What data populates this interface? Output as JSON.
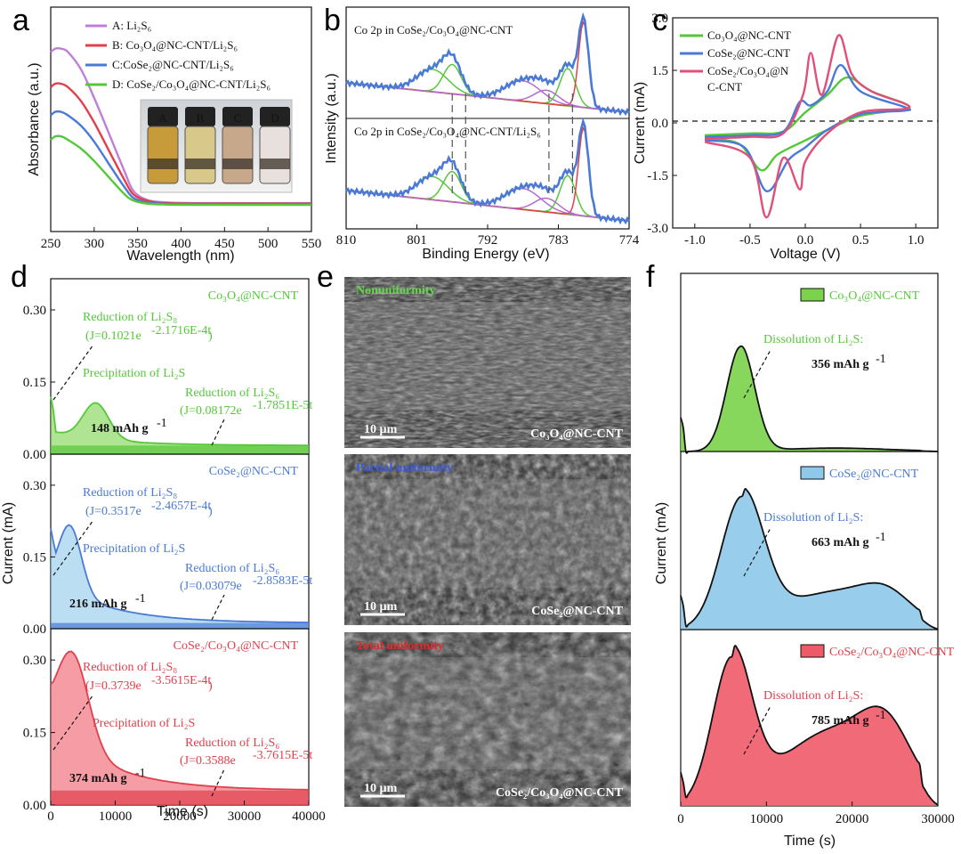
{
  "panel_labels": [
    "a",
    "b",
    "c",
    "d",
    "e",
    "f"
  ],
  "colors": {
    "purple": "#c07fd6",
    "red": "#e0404c",
    "blue": "#4a7ad6",
    "green": "#55c83a",
    "orange": "#f0a04a",
    "pink": "#e0507a",
    "violet": "#b46ad0",
    "green_fill": "#7ad34a",
    "blue_fill": "#8ec8ea",
    "red_fill": "#ee5a68",
    "sem_green": "#62d84a",
    "sem_blue": "#3b5bd6",
    "sem_red": "#e02a2a"
  },
  "chart_data": [
    {
      "id": "a",
      "type": "line",
      "xlabel": "Wavelength (nm)",
      "ylabel": "Absorbance (a.u.)",
      "xlim": [
        250,
        550
      ],
      "xticks": [
        "250",
        "300",
        "350",
        "400",
        "450",
        "500",
        "550"
      ],
      "legend_position": "top-right",
      "legend": [
        {
          "label": "A: Li₂S₆",
          "color": "purple"
        },
        {
          "label": "B: Co₃O₄@NC-CNT/Li₂S₆",
          "color": "red"
        },
        {
          "label": "C:CoSe₂@NC-CNT/Li₂S₆",
          "color": "blue"
        },
        {
          "label": "D: CoSe₂/Co₃O₄@NC-CNT/Li₂S₆",
          "color": "green"
        }
      ],
      "series": [
        {
          "color": "purple",
          "x": [
            250,
            255,
            262,
            270,
            285,
            300,
            320,
            335,
            345,
            360,
            380,
            420,
            550
          ],
          "y": [
            0.88,
            0.9,
            0.9,
            0.88,
            0.78,
            0.62,
            0.38,
            0.2,
            0.09,
            0.04,
            0.025,
            0.02,
            0.02
          ]
        },
        {
          "color": "red",
          "x": [
            250,
            255,
            262,
            270,
            285,
            300,
            320,
            335,
            345,
            360,
            380,
            420,
            550
          ],
          "y": [
            0.68,
            0.7,
            0.7,
            0.68,
            0.6,
            0.48,
            0.29,
            0.15,
            0.07,
            0.035,
            0.02,
            0.018,
            0.018
          ]
        },
        {
          "color": "blue",
          "x": [
            250,
            255,
            262,
            270,
            285,
            300,
            320,
            335,
            345,
            360,
            380,
            420,
            550
          ],
          "y": [
            0.52,
            0.54,
            0.54,
            0.52,
            0.46,
            0.37,
            0.22,
            0.11,
            0.05,
            0.025,
            0.016,
            0.015,
            0.015
          ]
        },
        {
          "color": "green",
          "x": [
            250,
            255,
            262,
            270,
            285,
            300,
            320,
            335,
            345,
            360,
            380,
            420,
            550
          ],
          "y": [
            0.38,
            0.4,
            0.4,
            0.38,
            0.33,
            0.26,
            0.15,
            0.07,
            0.035,
            0.018,
            0.012,
            0.01,
            0.01
          ]
        }
      ],
      "inset_labels": [
        "A",
        "B",
        "C",
        "D"
      ]
    },
    {
      "id": "b",
      "type": "line",
      "xlabel": "Binding Energy (eV)",
      "ylabel": "Intensity (a.u.)",
      "xlim": [
        810,
        774
      ],
      "xticks": [
        "810",
        "801",
        "792",
        "783",
        "774"
      ],
      "subplots": [
        {
          "label": "Co 2p in CoSe₂/Co₃O₄@NC-CNT"
        },
        {
          "label": "Co 2p in CoSe₂/Co₃O₄@NC-CNT/Li₂S₆"
        }
      ]
    },
    {
      "id": "c",
      "type": "line",
      "xlabel": "Voltage (V)",
      "ylabel": "Current (mA)",
      "xlim": [
        -1.2,
        1.2
      ],
      "ylim": [
        -3.0,
        3.0
      ],
      "xticks": [
        "-1.0",
        "-0.5",
        "0.0",
        "0.5",
        "1.0"
      ],
      "yticks": [
        "-3.0",
        "-1.5",
        "0.0",
        "1.5",
        "3.0"
      ],
      "legend_position": "top-left",
      "legend": [
        {
          "label": "Co₃O₄@NC-CNT",
          "color": "green"
        },
        {
          "label": "CoSe₂@NC-CNT",
          "color": "blue"
        },
        {
          "label": "CoSe₂/Co₃O₄@N",
          "label2": "C-CNT",
          "color": "pink"
        }
      ]
    },
    {
      "id": "d",
      "type": "area",
      "xlabel": "Time (s)",
      "ylabel": "Current (mA)",
      "xlim": [
        0,
        40000
      ],
      "xticks": [
        "0",
        "10000",
        "20000",
        "30000",
        "40000"
      ],
      "ylim": [
        0,
        0.35
      ],
      "yticks": [
        "0.00",
        "0.15",
        "0.30"
      ],
      "subplots": [
        {
          "name": "Co₃O₄@NC-CNT",
          "color": "green",
          "capacity": "148 mAh g",
          "text_reduction_li2s8": "Reduction of Li₂S₈",
          "eq1": "(J=0.1021e",
          "eq1sup": "-2.1716E-4t",
          "text_precip": "Precipitation of Li₂S",
          "text_reduction_li2s6": "Reduction of Li₂S₆",
          "eq2": "(J=0.08172e",
          "eq2sup": "-1.7851E-5t"
        },
        {
          "name": "CoSe₂@NC-CNT",
          "color": "blue",
          "capacity": "216 mAh g",
          "text_reduction_li2s8": "Reduction of Li₂S₈",
          "eq1": "(J=0.3517e",
          "eq1sup": "-2.4657E-4t",
          "text_precip": "Precipitation of Li₂S",
          "text_reduction_li2s6": "Reduction of Li₂S₆",
          "eq2": "(J=0.03079e",
          "eq2sup": "-2.8583E-5t"
        },
        {
          "name": "CoSe₂/Co₃O₄@NC-CNT",
          "color": "red",
          "capacity": "374 mAh g",
          "text_reduction_li2s8": "Reduction of Li₂S₈",
          "eq1": "(J=0.3739e",
          "eq1sup": "-3.5615E-4t",
          "text_precip": "Precipitation of Li₂S",
          "text_reduction_li2s6": "Reduction of Li₂S₆",
          "eq2": "(J=0.3588e",
          "eq2sup": "-3.7615E-5t"
        }
      ]
    },
    {
      "id": "f",
      "type": "area",
      "xlabel": "Time (s)",
      "ylabel": "Current (mA)",
      "xlim": [
        0,
        30000
      ],
      "xticks": [
        "0",
        "10000",
        "20000",
        "30000"
      ],
      "subplots": [
        {
          "name": "Co₃O₄@NC-CNT",
          "color": "green",
          "text": "Dissolution of Li₂S:",
          "capacity": "356 mAh g"
        },
        {
          "name": "CoSe₂@NC-CNT",
          "color": "blue",
          "text": "Dissolution of Li₂S:",
          "capacity": "663 mAh g"
        },
        {
          "name": "CoSe₂/Co₃O₄@NC-CNT",
          "color": "red",
          "text": "Dissolution of Li₂S:",
          "capacity": "785 mAh g"
        }
      ]
    }
  ],
  "sem": {
    "images": [
      {
        "title": "Nonuniformity",
        "title_color": "sem_green",
        "scale": "10 µm",
        "label": "Co₃O₄@NC-CNT"
      },
      {
        "title": "Partial uniformity",
        "title_color": "sem_blue",
        "scale": "10 µm",
        "label": "CoSe₂@NC-CNT"
      },
      {
        "title": "Total uniformity",
        "title_color": "sem_red",
        "scale": "10 µm",
        "label": "CoSe₂/Co₃O₄@NC-CNT"
      }
    ]
  }
}
